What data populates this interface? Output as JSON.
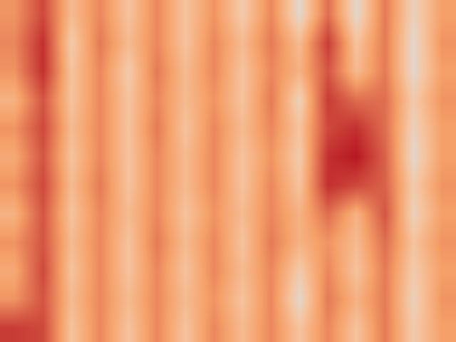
{
  "chart_data": {
    "type": "heatmap",
    "tick_labels": false,
    "zlim": [
      0,
      1
    ],
    "cells": [
      [
        0.45,
        0.75,
        0.25,
        0.5,
        0.2,
        0.5,
        0.2,
        0.45,
        0.15,
        0.5,
        0.05,
        0.6,
        0.05,
        0.55,
        0.1,
        0.4
      ],
      [
        0.5,
        0.85,
        0.15,
        0.55,
        0.25,
        0.5,
        0.2,
        0.5,
        0.25,
        0.55,
        0.25,
        0.8,
        0.2,
        0.55,
        0.05,
        0.45
      ],
      [
        0.45,
        0.85,
        0.2,
        0.5,
        0.15,
        0.55,
        0.25,
        0.5,
        0.2,
        0.5,
        0.3,
        0.7,
        0.25,
        0.55,
        0.05,
        0.4
      ],
      [
        0.3,
        0.7,
        0.2,
        0.5,
        0.2,
        0.5,
        0.25,
        0.45,
        0.2,
        0.55,
        0.1,
        0.8,
        0.6,
        0.6,
        0.15,
        0.45
      ],
      [
        0.45,
        0.75,
        0.25,
        0.5,
        0.2,
        0.55,
        0.2,
        0.5,
        0.25,
        0.5,
        0.2,
        0.75,
        0.85,
        0.6,
        0.1,
        0.4
      ],
      [
        0.35,
        0.7,
        0.2,
        0.5,
        0.2,
        0.5,
        0.25,
        0.5,
        0.2,
        0.45,
        0.15,
        0.85,
        0.95,
        0.65,
        0.05,
        0.4
      ],
      [
        0.45,
        0.75,
        0.25,
        0.55,
        0.2,
        0.5,
        0.25,
        0.5,
        0.2,
        0.5,
        0.2,
        0.85,
        0.75,
        0.65,
        0.15,
        0.45
      ],
      [
        0.3,
        0.7,
        0.2,
        0.5,
        0.25,
        0.5,
        0.2,
        0.45,
        0.25,
        0.5,
        0.3,
        0.6,
        0.3,
        0.7,
        0.1,
        0.4
      ],
      [
        0.45,
        0.7,
        0.25,
        0.5,
        0.2,
        0.55,
        0.25,
        0.5,
        0.2,
        0.55,
        0.3,
        0.45,
        0.25,
        0.6,
        0.2,
        0.45
      ],
      [
        0.35,
        0.75,
        0.2,
        0.5,
        0.2,
        0.5,
        0.2,
        0.5,
        0.25,
        0.5,
        0.15,
        0.5,
        0.2,
        0.55,
        0.15,
        0.4
      ],
      [
        0.45,
        0.7,
        0.25,
        0.5,
        0.25,
        0.5,
        0.25,
        0.45,
        0.2,
        0.5,
        0.05,
        0.55,
        0.3,
        0.55,
        0.1,
        0.45
      ],
      [
        0.8,
        0.75,
        0.2,
        0.5,
        0.2,
        0.5,
        0.2,
        0.5,
        0.25,
        0.5,
        0.2,
        0.5,
        0.2,
        0.55,
        0.15,
        0.4
      ]
    ]
  }
}
